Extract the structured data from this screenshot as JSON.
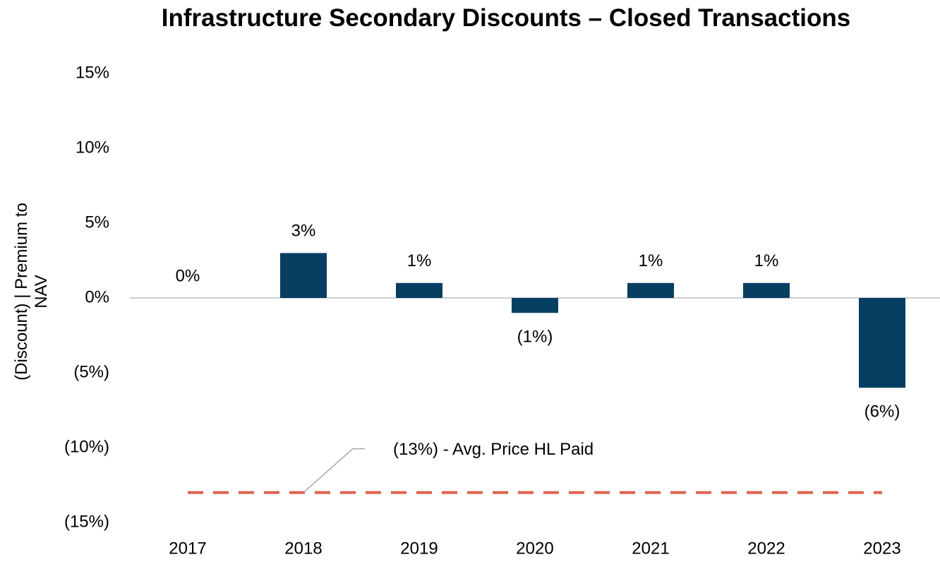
{
  "chart_data": {
    "type": "bar",
    "title": "Infrastructure Secondary Discounts – Closed Transactions",
    "y_axis_label": "(Discount) | Premium to NAV",
    "categories": [
      "2017",
      "2018",
      "2019",
      "2020",
      "2021",
      "2022",
      "2023"
    ],
    "values": [
      0,
      3,
      1,
      -1,
      1,
      1,
      -6
    ],
    "value_labels": [
      "0%",
      "3%",
      "1%",
      "(1%)",
      "1%",
      "1%",
      "(6%)"
    ],
    "color": "#073f63",
    "ylim": [
      -15,
      15
    ],
    "yticks": [
      {
        "value": -15,
        "label": "(15%)"
      },
      {
        "value": -10,
        "label": "(10%)"
      },
      {
        "value": -5,
        "label": "(5%)"
      },
      {
        "value": 0,
        "label": "0%"
      },
      {
        "value": 5,
        "label": "5%"
      },
      {
        "value": 10,
        "label": "10%"
      },
      {
        "value": 15,
        "label": "15%"
      }
    ],
    "grid": false,
    "reference_line": {
      "value": -13,
      "label": "(13%) - Avg. Price HL Paid",
      "color": "#e0614c"
    }
  }
}
